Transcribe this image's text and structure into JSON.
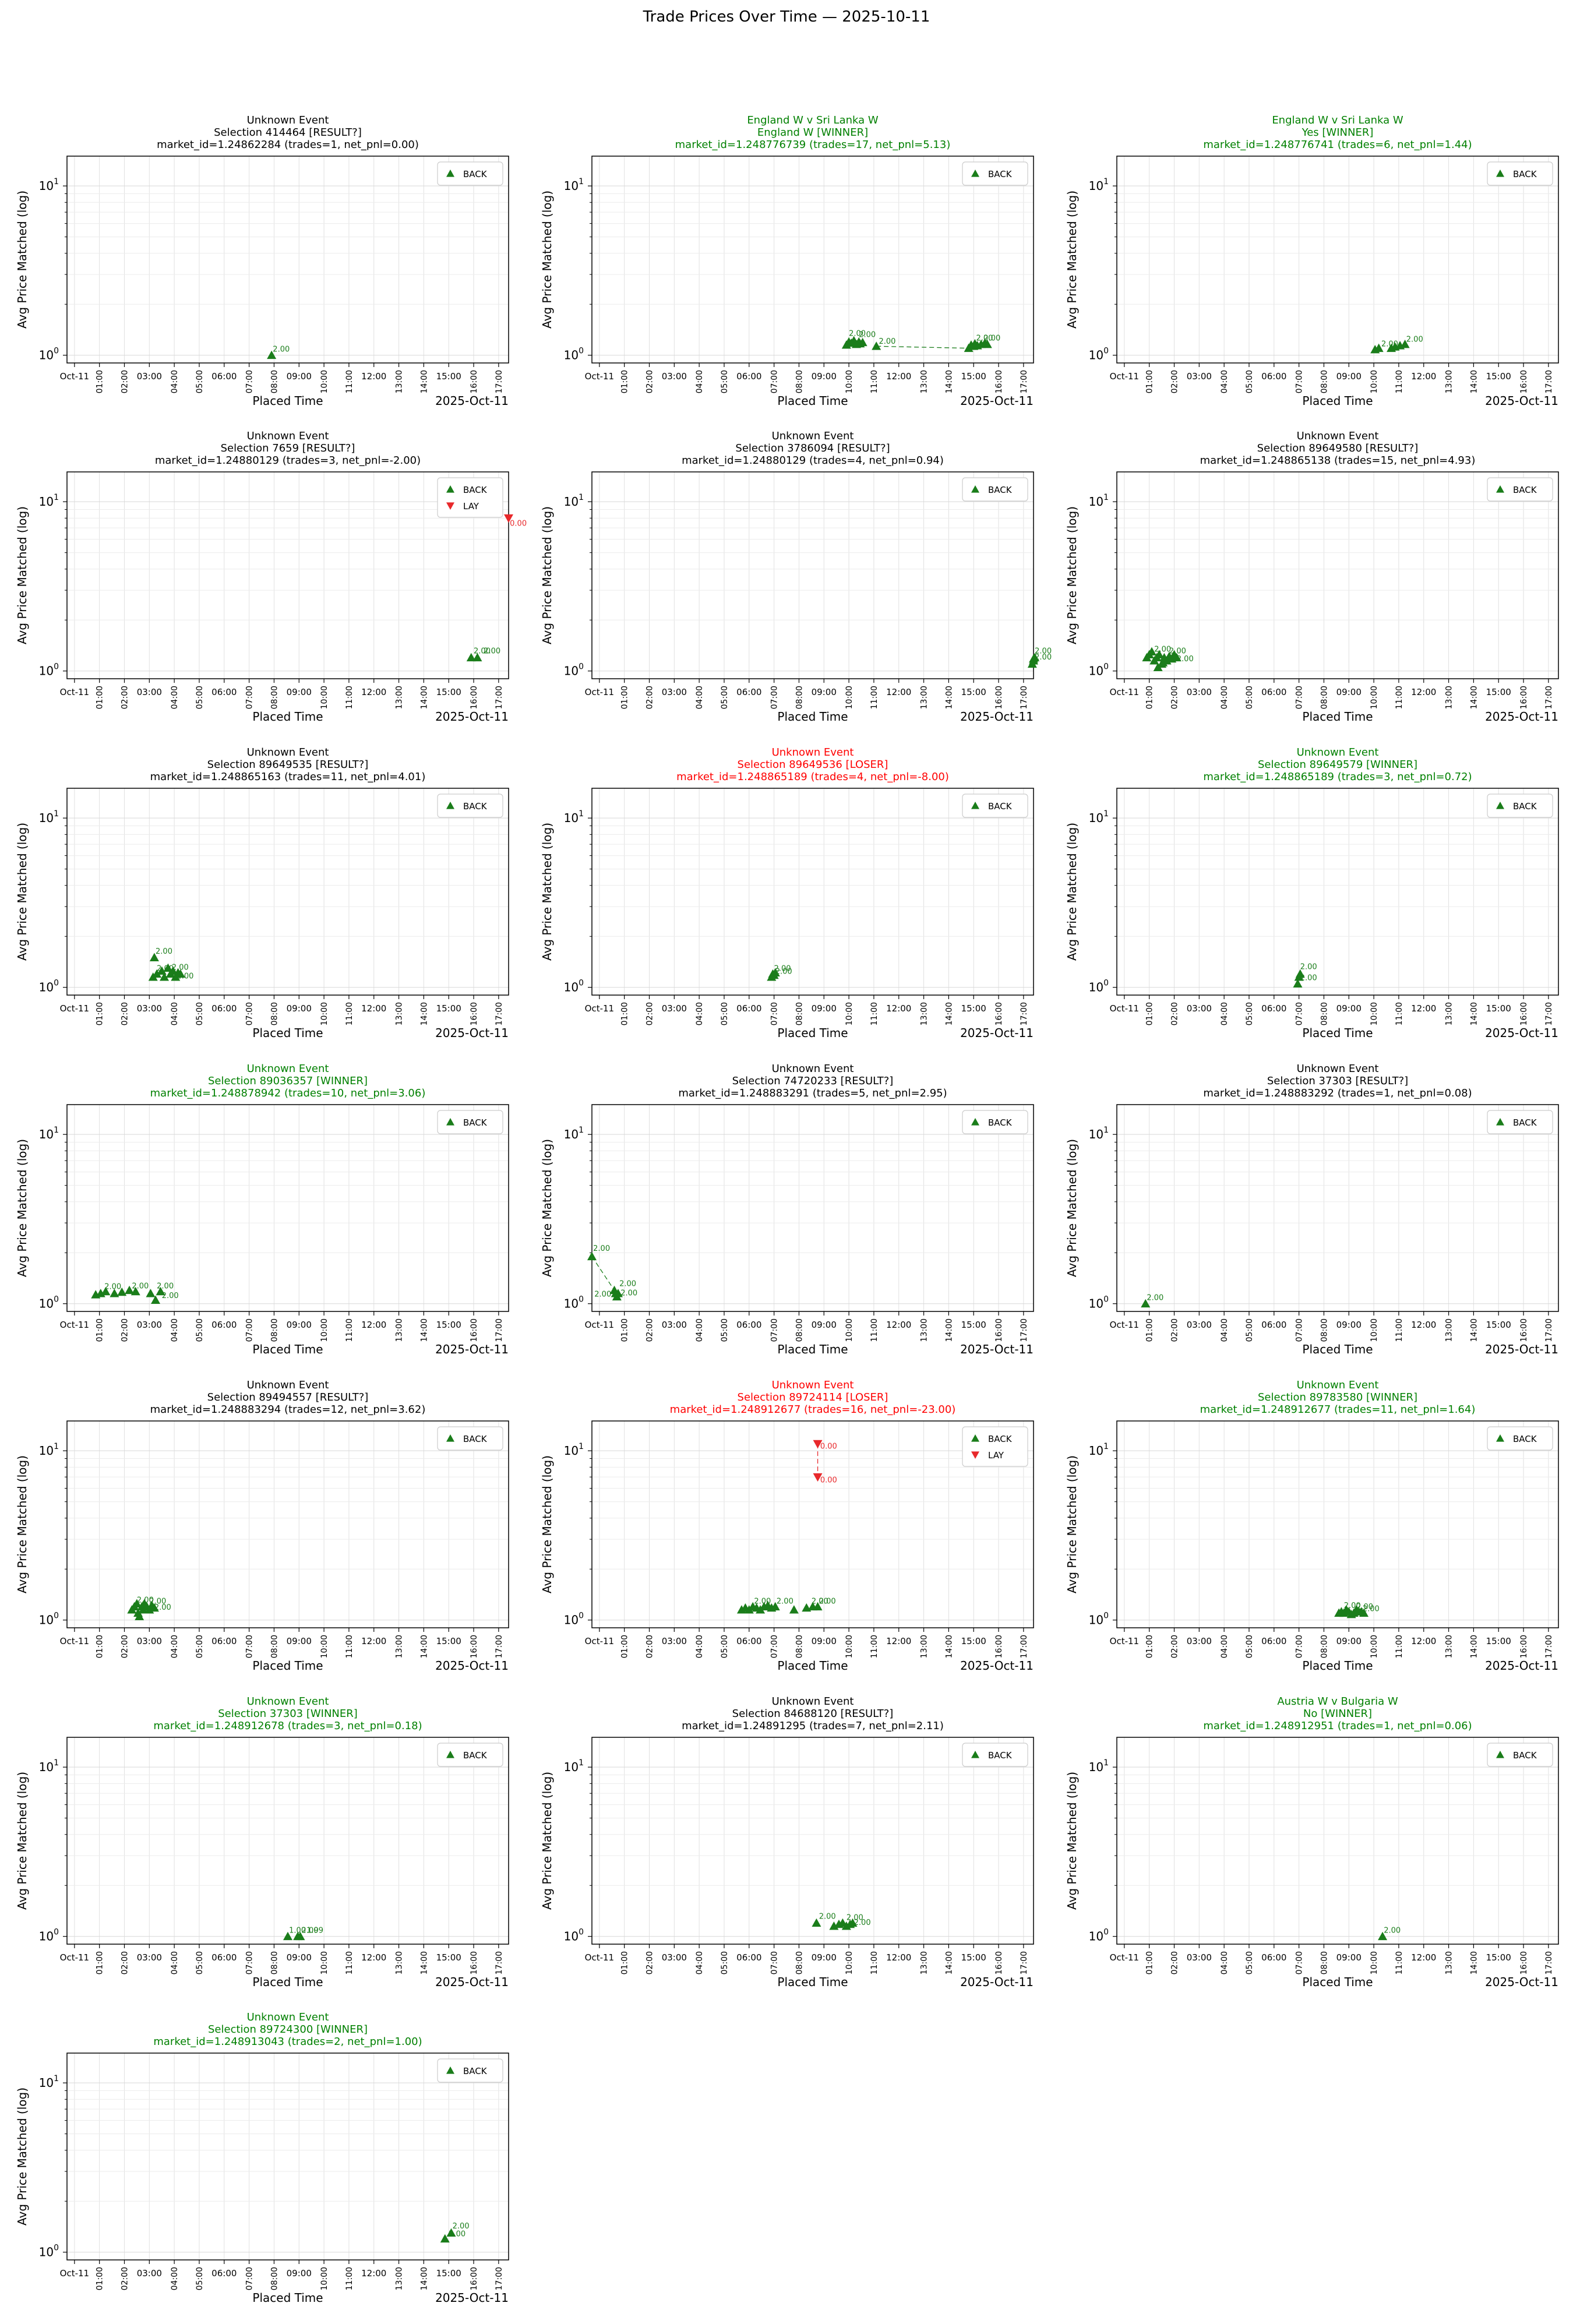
{
  "suptitle": "Trade Prices Over Time — 2025-10-11",
  "colors": {
    "ok": "#008000",
    "bad": "#ff0000",
    "neutral": "#000000",
    "back": "#1a7d1a",
    "lay": "#e8282b"
  },
  "shared_axes": {
    "xlabel": "Placed Time",
    "ylabel": "Avg Price Matched (log)",
    "x_offset_label": "2025-Oct-11",
    "x_ticks": [
      "Oct-11",
      "01:00",
      "02:00",
      "03:00",
      "04:00",
      "05:00",
      "06:00",
      "07:00",
      "08:00",
      "09:00",
      "10:00",
      "11:00",
      "12:00",
      "13:00",
      "14:00",
      "15:00",
      "16:00",
      "17:00"
    ],
    "x_tick_rotated": [
      false,
      true,
      true,
      false,
      true,
      true,
      false,
      true,
      true,
      false,
      true,
      true,
      false,
      true,
      true,
      false,
      true,
      true
    ],
    "x_range_hours": [
      -0.3,
      17.4
    ],
    "y_ticks": [
      "10^0",
      "10^1"
    ],
    "y_scale": "log",
    "ylim": [
      0.9,
      15
    ],
    "grid": true,
    "legend_loc": "upper right"
  },
  "chart_data": [
    {
      "type": "scatter",
      "status": "neutral",
      "title": [
        "Unknown Event",
        "Selection 414464 [RESULT?]",
        "market_id=1.24862284 (trades=1, net_pnl=0.00)"
      ],
      "legend": [
        "BACK"
      ],
      "back": [
        [
          7.9,
          1.0
        ]
      ],
      "lay": [],
      "labels": [
        [
          7.95,
          1.05,
          "2.00"
        ]
      ],
      "connect": []
    },
    {
      "type": "scatter",
      "status": "ok",
      "title": [
        "England W v Sri Lanka W",
        "England W [WINNER]",
        "market_id=1.248776739 (trades=17, net_pnl=5.13)"
      ],
      "legend": [
        "BACK"
      ],
      "back": [
        [
          9.9,
          1.15
        ],
        [
          10.0,
          1.2
        ],
        [
          10.1,
          1.18
        ],
        [
          10.2,
          1.22
        ],
        [
          10.3,
          1.16
        ],
        [
          10.4,
          1.2
        ],
        [
          10.45,
          1.17
        ],
        [
          10.55,
          1.19
        ],
        [
          11.1,
          1.13
        ],
        [
          14.8,
          1.1
        ],
        [
          14.9,
          1.15
        ],
        [
          15.0,
          1.13
        ],
        [
          15.05,
          1.17
        ],
        [
          15.15,
          1.14
        ],
        [
          15.3,
          1.16
        ],
        [
          15.45,
          1.18
        ],
        [
          15.55,
          1.16
        ]
      ],
      "lay": [],
      "labels": [
        [
          10.0,
          1.3,
          "2.00"
        ],
        [
          10.4,
          1.28,
          "2.00"
        ],
        [
          11.2,
          1.17,
          "2.00"
        ],
        [
          15.1,
          1.22,
          "2.00"
        ],
        [
          15.4,
          1.22,
          "2.00"
        ]
      ],
      "connect": [
        [
          11.1,
          1.13
        ],
        [
          14.8,
          1.1
        ]
      ]
    },
    {
      "type": "scatter",
      "status": "ok",
      "title": [
        "England W v Sri Lanka W",
        "Yes [WINNER]",
        "market_id=1.248776741 (trades=6, net_pnl=1.44)"
      ],
      "legend": [
        "BACK"
      ],
      "back": [
        [
          10.05,
          1.08
        ],
        [
          10.2,
          1.1
        ],
        [
          10.7,
          1.1
        ],
        [
          10.85,
          1.12
        ],
        [
          11.05,
          1.14
        ],
        [
          11.25,
          1.16
        ]
      ],
      "lay": [],
      "labels": [
        [
          10.3,
          1.13,
          "2.00"
        ],
        [
          11.3,
          1.2,
          "2.00"
        ]
      ],
      "connect": []
    },
    {
      "type": "scatter",
      "status": "neutral",
      "title": [
        "Unknown Event",
        "Selection 7659 [RESULT?]",
        "market_id=1.24880129 (trades=3, net_pnl=-2.00)"
      ],
      "legend": [
        "BACK",
        "LAY"
      ],
      "back": [
        [
          15.9,
          1.2
        ],
        [
          16.15,
          1.2
        ]
      ],
      "lay": [
        [
          17.4,
          8.0
        ]
      ],
      "labels": [
        [
          16.0,
          1.27,
          "2.00"
        ],
        [
          16.4,
          1.27,
          "2.00"
        ],
        [
          17.45,
          7.2,
          "0.00"
        ]
      ],
      "connect": []
    },
    {
      "type": "scatter",
      "status": "neutral",
      "title": [
        "Unknown Event",
        "Selection 3786094 [RESULT?]",
        "market_id=1.24880129 (trades=4, net_pnl=0.94)"
      ],
      "legend": [
        "BACK"
      ],
      "back": [
        [
          17.35,
          1.1
        ],
        [
          17.4,
          1.15
        ],
        [
          17.4,
          1.18
        ],
        [
          17.45,
          1.2
        ]
      ],
      "lay": [],
      "labels": [
        [
          17.45,
          1.27,
          "2.00"
        ],
        [
          17.45,
          1.17,
          "2.00"
        ]
      ],
      "connect": []
    },
    {
      "type": "scatter",
      "status": "neutral",
      "title": [
        "Unknown Event",
        "Selection 89649580 [RESULT?]",
        "market_id=1.248865138 (trades=15, net_pnl=4.93)"
      ],
      "legend": [
        "BACK"
      ],
      "back": [
        [
          0.9,
          1.2
        ],
        [
          1.0,
          1.25
        ],
        [
          1.1,
          1.3
        ],
        [
          1.2,
          1.15
        ],
        [
          1.3,
          1.2
        ],
        [
          1.4,
          1.25
        ],
        [
          1.5,
          1.1
        ],
        [
          1.6,
          1.2
        ],
        [
          1.7,
          1.15
        ],
        [
          1.8,
          1.22
        ],
        [
          1.9,
          1.18
        ],
        [
          2.0,
          1.25
        ],
        [
          2.1,
          1.2
        ],
        [
          1.35,
          1.05
        ],
        [
          1.55,
          1.12
        ]
      ],
      "lay": [],
      "labels": [
        [
          1.2,
          1.3,
          "2.00"
        ],
        [
          1.8,
          1.27,
          "2.00"
        ],
        [
          2.1,
          1.14,
          "2.00"
        ]
      ],
      "connect": []
    },
    {
      "type": "scatter",
      "status": "neutral",
      "title": [
        "Unknown Event",
        "Selection 89649535 [RESULT?]",
        "market_id=1.248865163 (trades=11, net_pnl=4.01)"
      ],
      "legend": [
        "BACK"
      ],
      "back": [
        [
          3.15,
          1.15
        ],
        [
          3.2,
          1.5
        ],
        [
          3.3,
          1.2
        ],
        [
          3.5,
          1.25
        ],
        [
          3.6,
          1.15
        ],
        [
          3.75,
          1.3
        ],
        [
          3.85,
          1.2
        ],
        [
          3.95,
          1.25
        ],
        [
          4.05,
          1.15
        ],
        [
          4.15,
          1.22
        ],
        [
          4.25,
          1.2
        ]
      ],
      "lay": [],
      "labels": [
        [
          3.25,
          1.58,
          "2.00"
        ],
        [
          3.3,
          1.25,
          "2.00"
        ],
        [
          3.9,
          1.27,
          "2.00"
        ],
        [
          4.1,
          1.13,
          "2.00"
        ]
      ],
      "connect": []
    },
    {
      "type": "scatter",
      "status": "bad",
      "title": [
        "Unknown Event",
        "Selection 89649536 [LOSER]",
        "market_id=1.248865189 (trades=4, net_pnl=-8.00)"
      ],
      "legend": [
        "BACK"
      ],
      "back": [
        [
          6.9,
          1.15
        ],
        [
          6.95,
          1.2
        ],
        [
          7.0,
          1.18
        ],
        [
          7.05,
          1.22
        ]
      ],
      "lay": [],
      "labels": [
        [
          7.0,
          1.25,
          "2.00"
        ],
        [
          7.05,
          1.2,
          "2.00"
        ]
      ],
      "connect": []
    },
    {
      "type": "scatter",
      "status": "ok",
      "title": [
        "Unknown Event",
        "Selection 89649579 [WINNER]",
        "market_id=1.248865189 (trades=3, net_pnl=0.72)"
      ],
      "legend": [
        "BACK"
      ],
      "back": [
        [
          6.95,
          1.05
        ],
        [
          7.0,
          1.15
        ],
        [
          7.05,
          1.2
        ]
      ],
      "lay": [],
      "labels": [
        [
          7.05,
          1.28,
          "2.00"
        ],
        [
          7.05,
          1.1,
          "2.00"
        ]
      ],
      "connect": []
    },
    {
      "type": "scatter",
      "status": "ok",
      "title": [
        "Unknown Event",
        "Selection 89036357 [WINNER]",
        "market_id=1.248878942 (trades=10, net_pnl=3.06)"
      ],
      "legend": [
        "BACK"
      ],
      "back": [
        [
          0.85,
          1.13
        ],
        [
          1.05,
          1.15
        ],
        [
          1.25,
          1.18
        ],
        [
          1.6,
          1.15
        ],
        [
          1.9,
          1.17
        ],
        [
          2.2,
          1.2
        ],
        [
          2.45,
          1.18
        ],
        [
          3.05,
          1.15
        ],
        [
          3.25,
          1.05
        ],
        [
          3.45,
          1.18
        ]
      ],
      "lay": [],
      "labels": [
        [
          1.2,
          1.22,
          "2.00"
        ],
        [
          2.3,
          1.23,
          "2.00"
        ],
        [
          3.3,
          1.23,
          "2.00"
        ],
        [
          3.5,
          1.08,
          "2.00"
        ]
      ],
      "connect": []
    },
    {
      "type": "scatter",
      "status": "neutral",
      "title": [
        "Unknown Event",
        "Selection 74720233 [RESULT?]",
        "market_id=1.248883291 (trades=5, net_pnl=2.95)"
      ],
      "legend": [
        "BACK"
      ],
      "back": [
        [
          -0.3,
          1.9
        ],
        [
          0.6,
          1.2
        ],
        [
          0.65,
          1.15
        ],
        [
          0.7,
          1.1
        ],
        [
          0.75,
          1.15
        ]
      ],
      "lay": [],
      "labels": [
        [
          -0.25,
          2.05,
          "2.00"
        ],
        [
          0.8,
          1.27,
          "2.00"
        ],
        [
          -0.2,
          1.1,
          "2.00"
        ],
        [
          0.85,
          1.12,
          "2.00"
        ]
      ],
      "connect": [
        [
          -0.3,
          1.9
        ],
        [
          0.6,
          1.2
        ]
      ]
    },
    {
      "type": "scatter",
      "status": "neutral",
      "title": [
        "Unknown Event",
        "Selection 37303 [RESULT?]",
        "market_id=1.248883292 (trades=1, net_pnl=0.08)"
      ],
      "legend": [
        "BACK"
      ],
      "back": [
        [
          0.85,
          1.0
        ]
      ],
      "lay": [],
      "labels": [
        [
          0.9,
          1.05,
          "2.00"
        ]
      ],
      "connect": []
    },
    {
      "type": "scatter",
      "status": "neutral",
      "title": [
        "Unknown Event",
        "Selection 89494557 [RESULT?]",
        "market_id=1.248883294 (trades=12, net_pnl=3.62)"
      ],
      "legend": [
        "BACK"
      ],
      "back": [
        [
          2.3,
          1.15
        ],
        [
          2.4,
          1.2
        ],
        [
          2.5,
          1.25
        ],
        [
          2.55,
          1.1
        ],
        [
          2.6,
          1.05
        ],
        [
          2.7,
          1.2
        ],
        [
          2.75,
          1.15
        ],
        [
          2.8,
          1.25
        ],
        [
          2.9,
          1.2
        ],
        [
          3.0,
          1.15
        ],
        [
          3.1,
          1.22
        ],
        [
          3.2,
          1.18
        ]
      ],
      "lay": [],
      "labels": [
        [
          2.5,
          1.27,
          "2.00"
        ],
        [
          3.0,
          1.25,
          "2.00"
        ],
        [
          3.2,
          1.15,
          "2.00"
        ]
      ],
      "connect": []
    },
    {
      "type": "scatter",
      "status": "bad",
      "title": [
        "Unknown Event",
        "Selection 89724114 [LOSER]",
        "market_id=1.248912677 (trades=16, net_pnl=-23.00)"
      ],
      "legend": [
        "BACK",
        "LAY"
      ],
      "back": [
        [
          5.7,
          1.15
        ],
        [
          5.85,
          1.18
        ],
        [
          6.0,
          1.15
        ],
        [
          6.15,
          1.2
        ],
        [
          6.3,
          1.18
        ],
        [
          6.45,
          1.15
        ],
        [
          6.6,
          1.2
        ],
        [
          6.75,
          1.22
        ],
        [
          6.9,
          1.18
        ],
        [
          7.05,
          1.2
        ],
        [
          7.8,
          1.15
        ],
        [
          8.3,
          1.18
        ],
        [
          8.55,
          1.2
        ],
        [
          8.75,
          1.2
        ]
      ],
      "lay": [
        [
          8.75,
          11.0
        ],
        [
          8.75,
          7.0
        ]
      ],
      "labels": [
        [
          6.2,
          1.25,
          "2.00"
        ],
        [
          7.1,
          1.25,
          "2.00"
        ],
        [
          8.5,
          1.25,
          "2.00"
        ],
        [
          8.8,
          1.25,
          "2.00"
        ],
        [
          8.85,
          10.3,
          "0.00"
        ],
        [
          8.85,
          6.5,
          "0.00"
        ]
      ],
      "connect": [
        [
          8.75,
          11.0
        ],
        [
          8.75,
          7.0
        ]
      ]
    },
    {
      "type": "scatter",
      "status": "ok",
      "title": [
        "Unknown Event",
        "Selection 89783580 [WINNER]",
        "market_id=1.248912677 (trades=11, net_pnl=1.64)"
      ],
      "legend": [
        "BACK"
      ],
      "back": [
        [
          8.6,
          1.1
        ],
        [
          8.7,
          1.12
        ],
        [
          8.8,
          1.1
        ],
        [
          8.9,
          1.15
        ],
        [
          9.0,
          1.12
        ],
        [
          9.1,
          1.08
        ],
        [
          9.2,
          1.1
        ],
        [
          9.3,
          1.15
        ],
        [
          9.4,
          1.12
        ],
        [
          9.5,
          1.12
        ],
        [
          9.6,
          1.1
        ]
      ],
      "lay": [],
      "labels": [
        [
          8.8,
          1.18,
          "2.00"
        ],
        [
          9.3,
          1.16,
          "2.00"
        ],
        [
          9.55,
          1.13,
          "2.00"
        ]
      ],
      "connect": []
    },
    {
      "type": "scatter",
      "status": "ok",
      "title": [
        "Unknown Event",
        "Selection 37303 [WINNER]",
        "market_id=1.248912678 (trades=3, net_pnl=0.18)"
      ],
      "legend": [
        "BACK"
      ],
      "back": [
        [
          8.55,
          1.0
        ],
        [
          8.95,
          1.0
        ],
        [
          9.05,
          1.0
        ]
      ],
      "lay": [],
      "labels": [
        [
          8.6,
          1.05,
          "1.00"
        ],
        [
          9.1,
          1.05,
          "2.00"
        ],
        [
          9.3,
          1.05,
          "1.99"
        ]
      ],
      "connect": []
    },
    {
      "type": "scatter",
      "status": "neutral",
      "title": [
        "Unknown Event",
        "Selection 84688120 [RESULT?]",
        "market_id=1.24891295 (trades=7, net_pnl=2.11)"
      ],
      "legend": [
        "BACK"
      ],
      "back": [
        [
          8.7,
          1.2
        ],
        [
          9.4,
          1.15
        ],
        [
          9.6,
          1.18
        ],
        [
          9.75,
          1.2
        ],
        [
          9.9,
          1.15
        ],
        [
          10.05,
          1.18
        ],
        [
          10.15,
          1.2
        ]
      ],
      "lay": [],
      "labels": [
        [
          8.8,
          1.27,
          "2.00"
        ],
        [
          9.9,
          1.25,
          "2.00"
        ],
        [
          10.2,
          1.17,
          "2.00"
        ]
      ],
      "connect": []
    },
    {
      "type": "scatter",
      "status": "ok",
      "title": [
        "Austria W v Bulgaria W",
        "No [WINNER]",
        "market_id=1.248912951 (trades=1, net_pnl=0.06)"
      ],
      "legend": [
        "BACK"
      ],
      "back": [
        [
          10.35,
          1.0
        ]
      ],
      "lay": [],
      "labels": [
        [
          10.4,
          1.05,
          "2.00"
        ]
      ],
      "connect": []
    },
    {
      "type": "scatter",
      "status": "ok",
      "title": [
        "Unknown Event",
        "Selection 89724300 [WINNER]",
        "market_id=1.248913043 (trades=2, net_pnl=1.00)"
      ],
      "legend": [
        "BACK"
      ],
      "back": [
        [
          14.85,
          1.2
        ],
        [
          15.1,
          1.3
        ]
      ],
      "lay": [],
      "labels": [
        [
          15.15,
          1.38,
          "2.00"
        ],
        [
          15.0,
          1.24,
          "2.00"
        ]
      ],
      "connect": []
    }
  ]
}
